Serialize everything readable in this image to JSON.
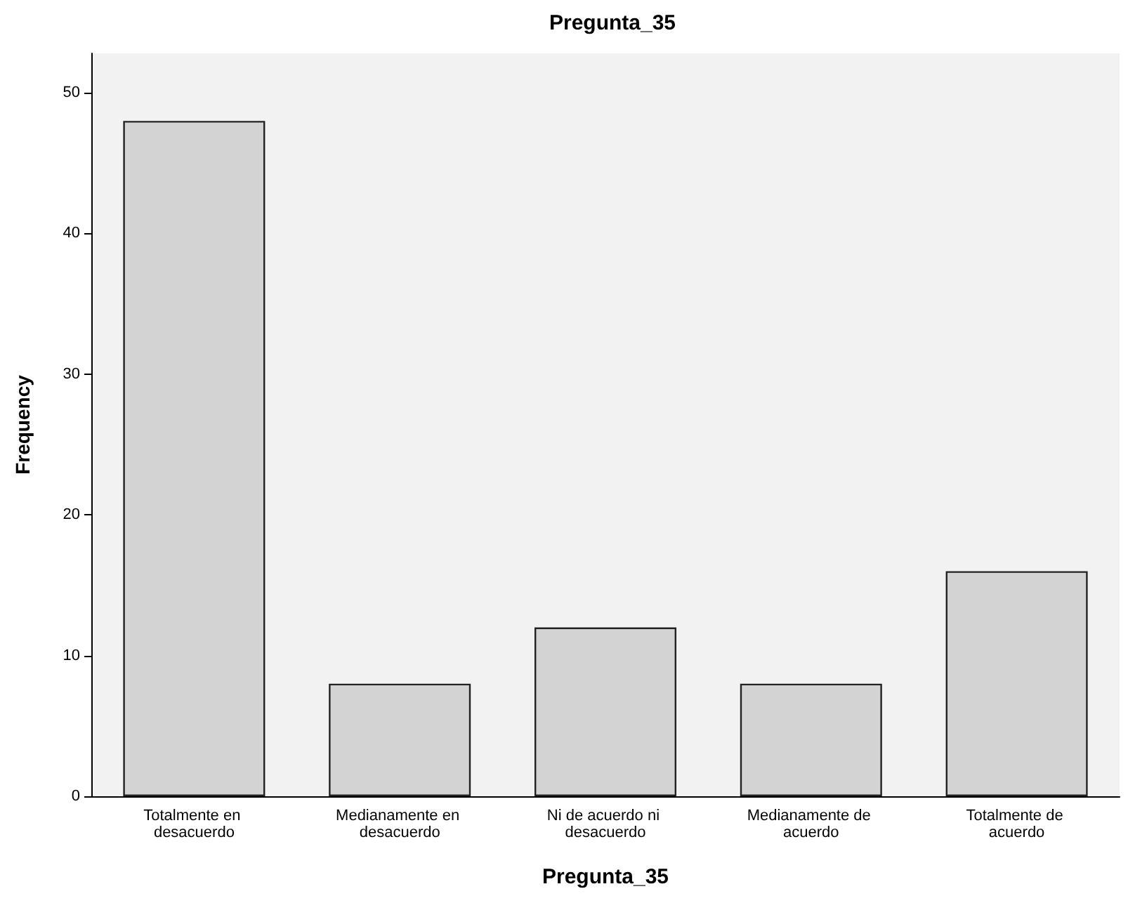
{
  "chart_data": {
    "type": "bar",
    "title": "Pregunta_35",
    "xlabel": "Pregunta_35",
    "ylabel": "Frequency",
    "categories": [
      "Totalmente en desacuerdo",
      "Medianamente en desacuerdo",
      "Ni de acuerdo ni desacuerdo",
      "Medianamente de acuerdo",
      "Totalmente de acuerdo"
    ],
    "values": [
      48,
      8,
      12,
      8,
      16
    ],
    "color": "#d3d3d3",
    "ylim": [
      0,
      52.8
    ],
    "yticks": [
      0,
      10,
      20,
      30,
      40,
      50
    ]
  }
}
